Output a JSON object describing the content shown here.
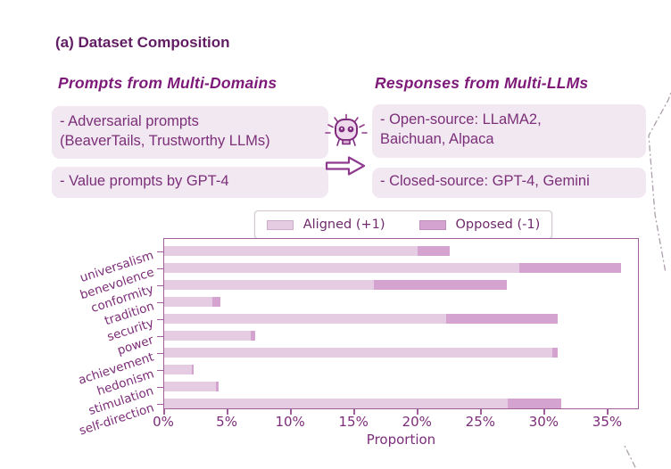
{
  "title": "(a) Dataset Composition",
  "columns": {
    "left": {
      "header": "Prompts from Multi-Domains",
      "box1_line1": "- Adversarial prompts",
      "box1_line2": "(BeaverTails, Trustworthy LLMs)",
      "box2": "- Value prompts by GPT-4"
    },
    "right": {
      "header": "Responses from Multi-LLMs",
      "box1_line1": "- Open-source: LLaMA2,",
      "box1_line2": "Baichuan, Alpaca",
      "box2": "- Closed-source: GPT-4, Gemini"
    }
  },
  "icons": {
    "robot": "robot-face-icon",
    "arrow": "hollow-right-arrow-icon"
  },
  "colors": {
    "title_text": "#611c63",
    "header_text": "#7d1a79",
    "box_bg": "#f2e8f2",
    "box_text": "#7b2f78",
    "chart_text": "#7b2d78",
    "axis": "#9e5f9b",
    "aligned_fill": "#e6cce3",
    "opposed_fill": "#d5a3d0",
    "dash_line": "#ab9fab"
  },
  "chart_data": {
    "type": "bar",
    "orientation": "horizontal",
    "stacked": true,
    "categories": [
      "universalism",
      "benevolence",
      "conformity",
      "tradition",
      "security",
      "power",
      "achievement",
      "hedonism",
      "stimulation",
      "self-direction"
    ],
    "series": [
      {
        "name": "Aligned (+1)",
        "color": "#e6cce3",
        "values": [
          20.0,
          28.0,
          16.5,
          3.8,
          22.2,
          6.8,
          30.6,
          2.2,
          4.1,
          27.1
        ]
      },
      {
        "name": "Opposed (-1)",
        "color": "#d5a3d0",
        "values": [
          2.5,
          8.0,
          10.5,
          0.6,
          8.8,
          0.4,
          0.4,
          0.1,
          0.2,
          4.2
        ]
      }
    ],
    "totals": [
      22.5,
      36.0,
      27.0,
      4.4,
      31.0,
      7.2,
      31.0,
      2.3,
      4.3,
      31.3
    ],
    "xlabel": "Proportion",
    "x_ticks": [
      "0%",
      "5%",
      "10%",
      "15%",
      "20%",
      "25%",
      "30%",
      "35%"
    ],
    "x_tick_values": [
      0,
      5,
      10,
      15,
      20,
      25,
      30,
      35
    ],
    "xlim": [
      0,
      37.5
    ],
    "grid": false,
    "legend_position": "upper-center-outside"
  }
}
